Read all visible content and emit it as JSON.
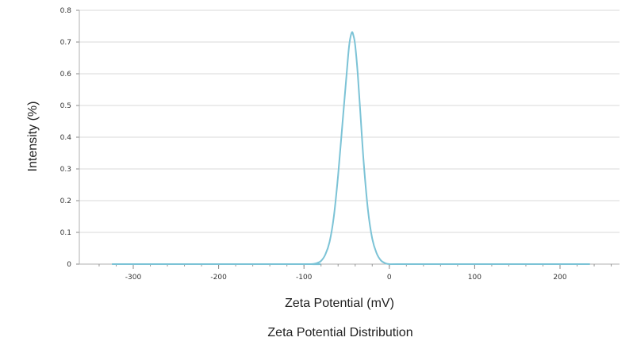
{
  "chart_data": {
    "type": "line",
    "title": "",
    "caption": "Zeta Potential Distribution",
    "xlabel": "Zeta Potential (mV)",
    "ylabel": "Intensity (%)",
    "xlim": [
      -350,
      260
    ],
    "ylim": [
      0,
      0.8
    ],
    "xticks": [
      -300,
      -200,
      -100,
      0,
      100,
      200
    ],
    "yticks": [
      0,
      0.1,
      0.2,
      0.3,
      0.4,
      0.5,
      0.6,
      0.7,
      0.8
    ],
    "grid": "horizontal",
    "legend": "none",
    "series": [
      {
        "color": "#7cc3d6",
        "x": [
          -325,
          -100,
          -92,
          -85,
          -80,
          -75,
          -70,
          -65,
          -60,
          -55,
          -50,
          -47,
          -44,
          -42,
          -40,
          -37,
          -34,
          -30,
          -25,
          -20,
          -15,
          -10,
          -5,
          0,
          10,
          100,
          235
        ],
        "y": [
          0,
          0,
          0.0,
          0.003,
          0.01,
          0.03,
          0.07,
          0.15,
          0.28,
          0.44,
          0.6,
          0.69,
          0.73,
          0.72,
          0.69,
          0.6,
          0.48,
          0.32,
          0.17,
          0.08,
          0.035,
          0.012,
          0.003,
          0.0,
          0,
          0,
          0
        ]
      }
    ]
  }
}
